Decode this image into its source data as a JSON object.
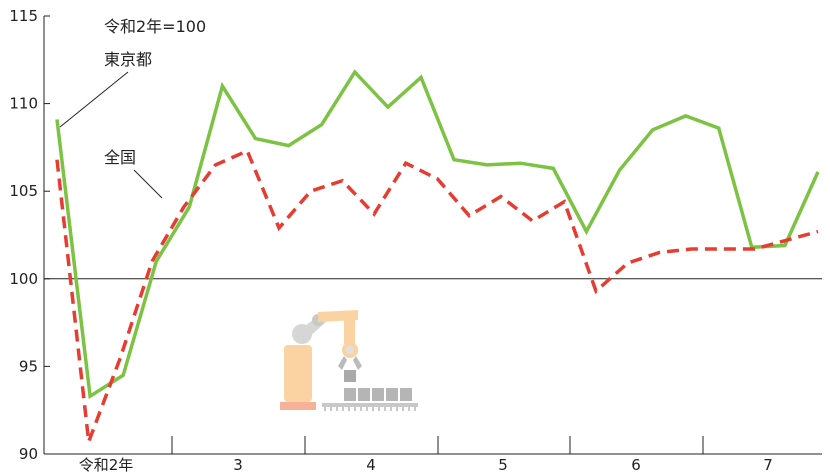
{
  "chart_data": {
    "type": "line",
    "unit_note": "令和2年=100",
    "y_ticks": [
      "115",
      "110",
      "105",
      "100",
      "95",
      "90"
    ],
    "ylim": [
      90,
      115
    ],
    "baseline": 100,
    "x_labels": [
      "令和2年",
      "3",
      "4",
      "5",
      "6",
      "7"
    ],
    "months_total": 59,
    "series": [
      {
        "name": "東京都",
        "color": "#7cc243",
        "style": "solid",
        "values": [
          109.1,
          93.3,
          94.5,
          101.0,
          104.1,
          111.0,
          108.0,
          107.6,
          108.8,
          111.8,
          109.8,
          111.5,
          106.8,
          106.5,
          106.6,
          106.3,
          102.7,
          106.2,
          108.5,
          109.3,
          108.6,
          101.8,
          101.9,
          106.1
        ]
      },
      {
        "name": "全国",
        "color": "#e63c32",
        "style": "dashed",
        "values": [
          106.8,
          90.7,
          95.5,
          101.0,
          104.1,
          106.5,
          107.3,
          102.9,
          105.0,
          105.6,
          103.7,
          106.6,
          105.7,
          103.6,
          104.7,
          103.3,
          104.4,
          99.3,
          100.9,
          101.5,
          101.7,
          101.7,
          101.7,
          102.2,
          102.7
        ]
      }
    ]
  }
}
